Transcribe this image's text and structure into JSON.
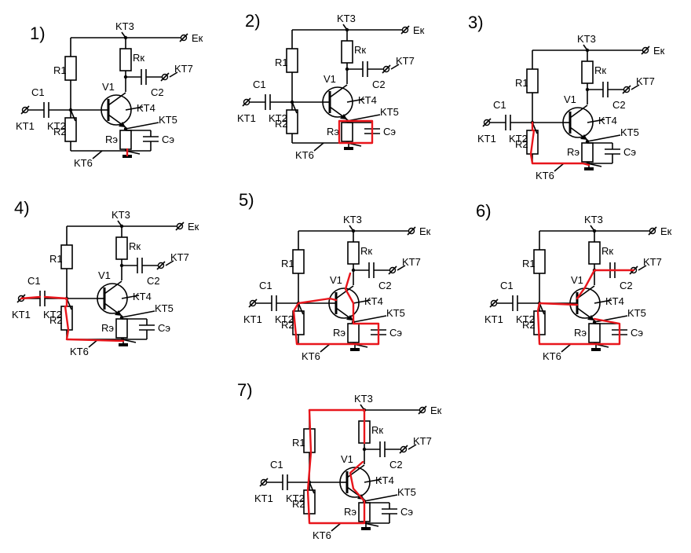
{
  "colors": {
    "wire": "#000000",
    "highlight": "#e8161c",
    "background": "#ffffff"
  },
  "labels": {
    "kt1": "KT1",
    "kt2": "KT2",
    "kt3": "KT3",
    "kt4": "KT4",
    "kt5": "KT5",
    "kt6": "KT6",
    "kt7": "KT7",
    "c1": "C1",
    "c2": "C2",
    "r1": "R1",
    "r2": "R2",
    "rk": "Rк",
    "re": "Rэ",
    "ce": "Cэ",
    "v1": "V1",
    "ek": "Eк"
  },
  "panels": [
    {
      "number": "1)",
      "highlight": "none"
    },
    {
      "number": "2)",
      "highlight": "emitter-rc-loop"
    },
    {
      "number": "3)",
      "highlight": "kt2-r2-kt6"
    },
    {
      "number": "4)",
      "highlight": "kt1-c1-r2-kt6"
    },
    {
      "number": "5)",
      "highlight": "base-emitter-loop"
    },
    {
      "number": "6)",
      "highlight": "kt7-collector-emitter-loop"
    },
    {
      "number": "7)",
      "highlight": "supply-r1-r2-ground-loop"
    }
  ]
}
